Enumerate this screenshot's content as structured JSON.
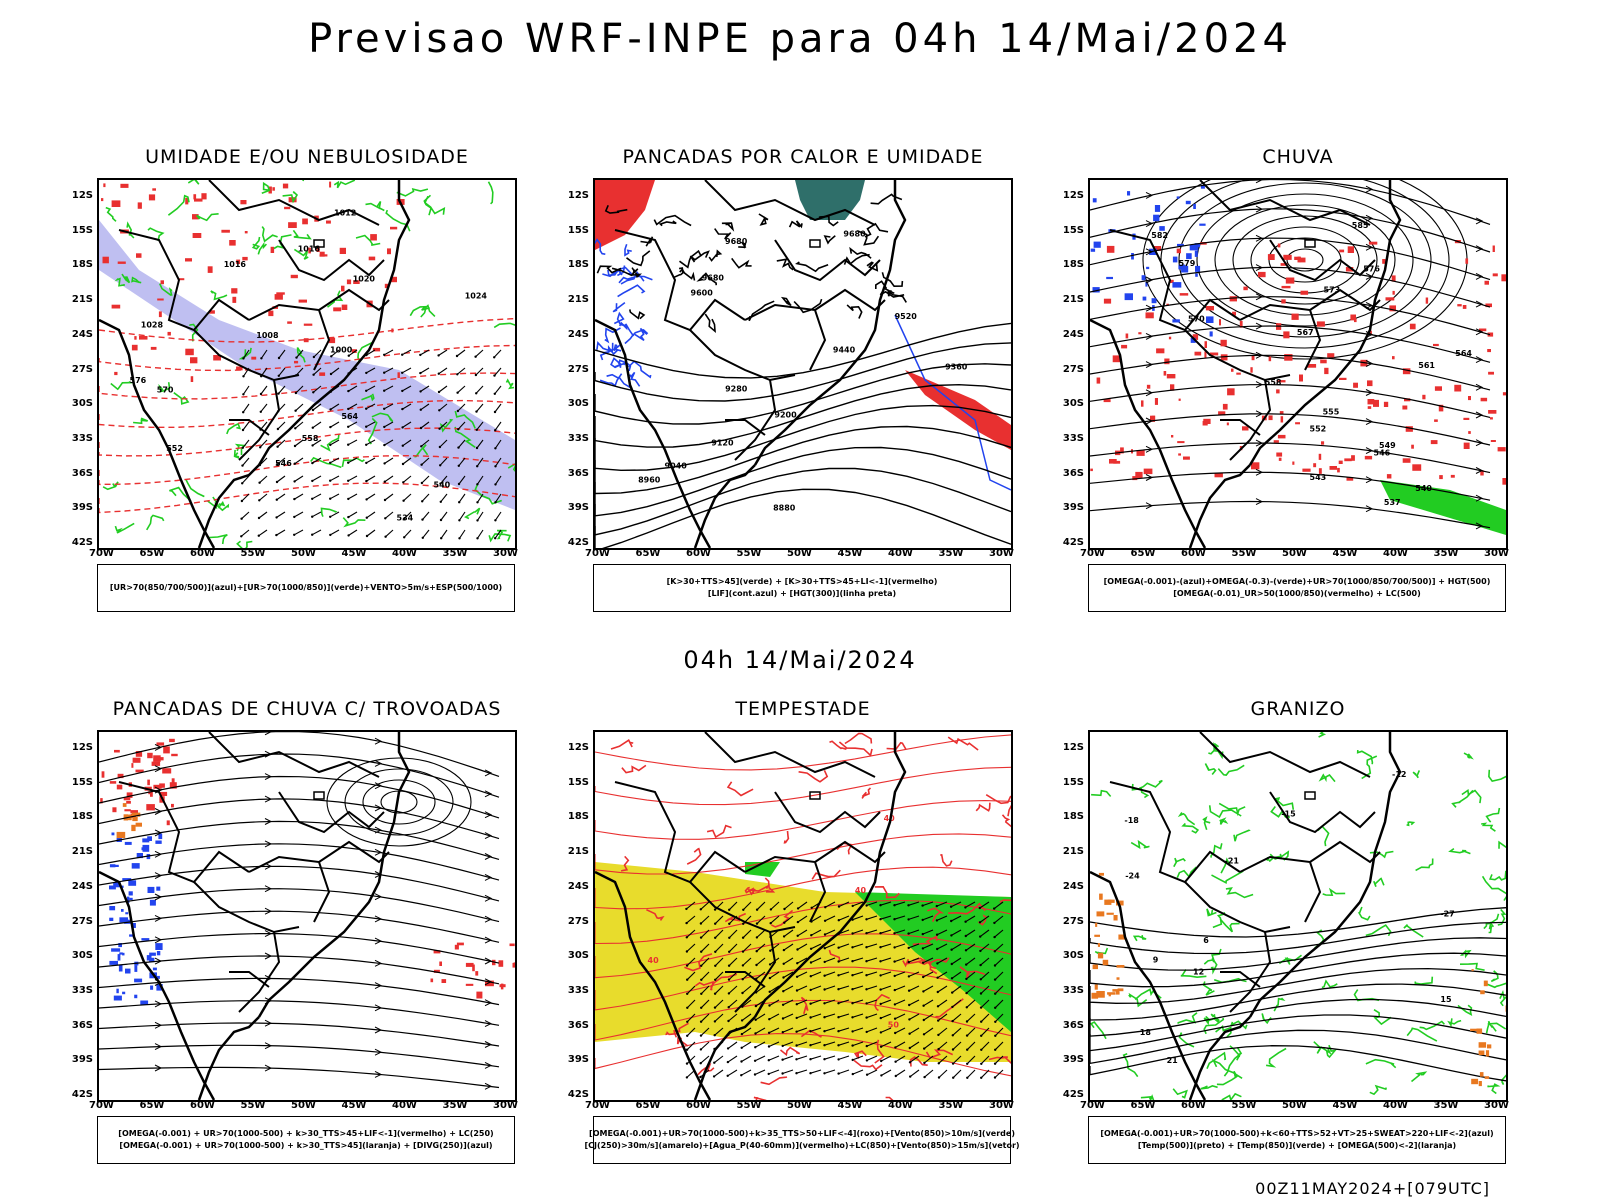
{
  "main_title": "Previsao WRF-INPE  para 04h 14/Mai/2024",
  "middle_title": "04h 14/Mai/2024",
  "footer": "00Z11MAY2024+[079UTC]",
  "lat_labels": [
    "12S",
    "15S",
    "18S",
    "21S",
    "24S",
    "27S",
    "30S",
    "33S",
    "36S",
    "39S",
    "42S"
  ],
  "lon_labels": [
    "70W",
    "65W",
    "60W",
    "55W",
    "50W",
    "45W",
    "40W",
    "35W",
    "30W"
  ],
  "colors": {
    "border": "#000000",
    "red": "#e83030",
    "green": "#22cc22",
    "blue": "#2244ee",
    "lavender": "#b4b4ee",
    "yellow": "#e8dc2c",
    "teal": "#2f6f6a",
    "orange": "#e87820"
  },
  "panels": [
    {
      "title": "UMIDADE E/OU NEBULOSIDADE",
      "legend": [
        "[UR>70(850/700/500)](azul)+[UR>70(1000/850)](verde)+VENTO>5m/s+ESP(500/1000)"
      ],
      "contour_labels": [
        "1012",
        "1016",
        "1016",
        "1020",
        "1024",
        "1028",
        "1008",
        "1000",
        "576",
        "570",
        "564",
        "558",
        "552",
        "546",
        "540",
        "534"
      ]
    },
    {
      "title": "PANCADAS POR CALOR E UMIDADE",
      "legend": [
        "[K>30+TTS>45](verde) + [K>30+TTS>45+LI<-1](vermelho)",
        "[LIF](cont.azul) + [HGT(300)](linha preta)"
      ],
      "contour_labels": [
        "9680",
        "9680",
        "9680",
        "9600",
        "9520",
        "9440",
        "9360",
        "9280",
        "9200",
        "9120",
        "9040",
        "8960",
        "8880"
      ]
    },
    {
      "title": "CHUVA",
      "legend": [
        "[OMEGA(-0.001)-(azul)+OMEGA(-0.3)-(verde)+UR>70(1000/850/700/500)] + HGT(500)",
        "[OMEGA(-0.01)_UR>50(1000/850)(vermelho) + LC(500)"
      ],
      "contour_labels": [
        "585",
        "582",
        "579",
        "576",
        "573",
        "570",
        "567",
        "564",
        "561",
        "558",
        "555",
        "552",
        "549",
        "546",
        "543",
        "540",
        "537"
      ]
    },
    {
      "title": "PANCADAS DE CHUVA C/ TROVOADAS",
      "legend": [
        "[OMEGA(-0.001) + UR>70(1000-500) + k>30_TTS>45+LIF<-1](vermelho) + LC(250)",
        "[OMEGA(-0.001) + UR>70(1000-500) + k>30_TTS>45](laranja) + [DIVG(250)](azul)"
      ],
      "contour_labels": []
    },
    {
      "title": "TEMPESTADE",
      "legend": [
        "[OMEGA(-0.001)+UR>70(1000-500)+k>35_TTS>50+LIF<-4](roxo)+[Vento(850)>10m/s](verde)",
        "[CJ(250)>30m/s](amarelo)+[Agua_P(40-60mm)](vermelho)+LC(850)+[Vento(850)>15m/s](vetor)"
      ],
      "contour_labels": [
        "40",
        "40",
        "40",
        "50"
      ]
    },
    {
      "title": "GRANIZO",
      "legend": [
        "[OMEGA(-0.001)+UR>70(1000-500)+k<60+TTS>52+VT>25+SWEAT>220+LIF<-2](azul)",
        "[Temp(500)](preto) + [Temp(850)](verde) + [OMEGA(500)<-2](laranja)"
      ],
      "contour_labels": [
        "-12",
        "-15",
        "-18",
        "-21",
        "-24",
        "-27",
        "6",
        "9",
        "12",
        "15",
        "18",
        "21"
      ]
    }
  ]
}
